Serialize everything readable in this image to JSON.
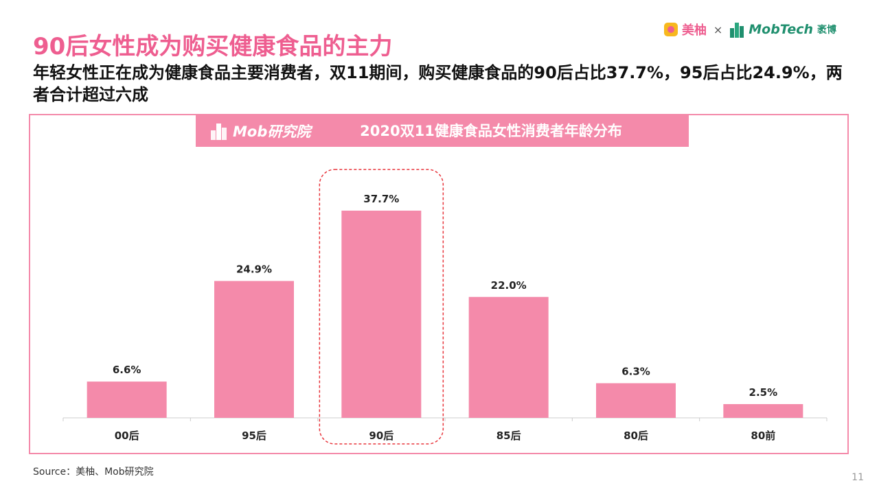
{
  "title": "90后女性成为购买健康食品的主力",
  "subtitle": "年轻女性正在成为健康食品主要消费者，双11期间，购买健康食品的90后占比37.7%，95后占比24.9%，两者合计超过六成",
  "logos": {
    "meiyou": "美柚",
    "times": "×",
    "mobtech": "MobTech",
    "mobtech_cn": "袤博"
  },
  "chart_header": {
    "logo_text": "Mob研究院"
  },
  "chart_data": {
    "type": "bar",
    "title": "2020双11健康食品女性消费者年龄分布",
    "categories": [
      "00后",
      "95后",
      "90后",
      "85后",
      "80后",
      "80前"
    ],
    "values": [
      6.6,
      24.9,
      37.7,
      22.0,
      6.3,
      2.5
    ],
    "value_labels": [
      "6.6%",
      "24.9%",
      "37.7%",
      "22.0%",
      "6.3%",
      "2.5%"
    ],
    "highlight_category": "90后",
    "bar_color": "#f48aaa",
    "highlight_color": "#e8343b",
    "ylim": [
      0,
      40
    ],
    "grid": false,
    "xlabel": "",
    "ylabel": ""
  },
  "source": "Source：美柚、Mob研究院",
  "page_number": "11"
}
